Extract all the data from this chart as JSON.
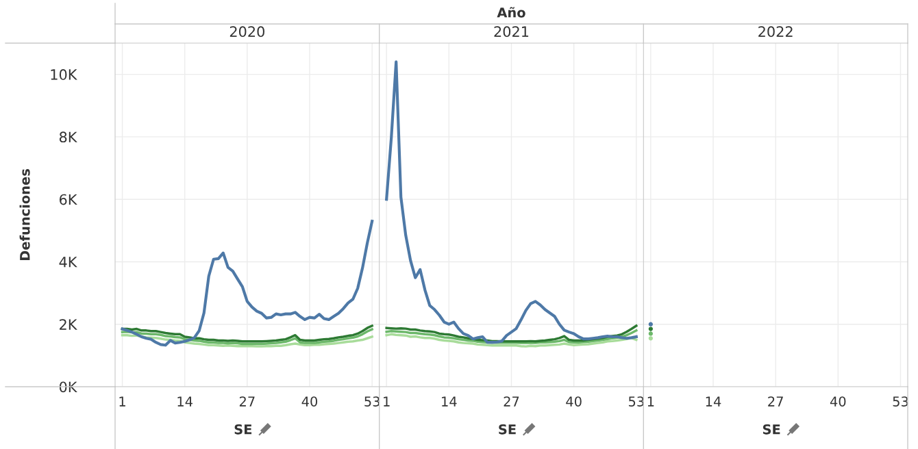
{
  "chart_data": [
    {
      "type": "line",
      "title": "2020",
      "xlabel": "SE",
      "ylabel": "Defunciones",
      "annotations": [
        "Año"
      ],
      "x": [
        1,
        2,
        3,
        4,
        5,
        6,
        7,
        8,
        9,
        10,
        11,
        12,
        13,
        14,
        15,
        16,
        17,
        18,
        19,
        20,
        21,
        22,
        23,
        24,
        25,
        26,
        27,
        28,
        29,
        30,
        31,
        32,
        33,
        34,
        35,
        36,
        37,
        38,
        39,
        40,
        41,
        42,
        43,
        44,
        45,
        46,
        47,
        48,
        49,
        50,
        51,
        52,
        53
      ],
      "xlim": [
        -0.5,
        54.5
      ],
      "xticks": [
        1,
        14,
        27,
        40,
        53
      ],
      "ylim": [
        0,
        11000
      ],
      "yticks": [
        {
          "value": 0,
          "label": "0K"
        },
        {
          "value": 2000,
          "label": "2K"
        },
        {
          "value": 4000,
          "label": "4K"
        },
        {
          "value": 6000,
          "label": "6K"
        },
        {
          "value": 8000,
          "label": "8K"
        },
        {
          "value": 10000,
          "label": "10K"
        }
      ],
      "grid": true,
      "line_style": "solid",
      "series": [
        {
          "color": "#a8dc9a",
          "values": [
            1650,
            1650,
            1630,
            1640,
            1600,
            1580,
            1570,
            1560,
            1540,
            1510,
            1500,
            1480,
            1470,
            1420,
            1400,
            1380,
            1370,
            1350,
            1330,
            1330,
            1320,
            1310,
            1320,
            1310,
            1300,
            1300,
            1300,
            1300,
            1290,
            1290,
            1300,
            1300,
            1310,
            1310,
            1330,
            1360,
            1380,
            1350,
            1330,
            1330,
            1340,
            1340,
            1360,
            1370,
            1380,
            1400,
            1420,
            1440,
            1450,
            1480,
            1500,
            1550,
            1600
          ]
        },
        {
          "color": "#6cb86a",
          "values": [
            1750,
            1760,
            1740,
            1750,
            1700,
            1700,
            1680,
            1680,
            1660,
            1620,
            1610,
            1590,
            1580,
            1520,
            1500,
            1480,
            1470,
            1440,
            1420,
            1420,
            1400,
            1400,
            1390,
            1400,
            1390,
            1370,
            1370,
            1370,
            1370,
            1370,
            1380,
            1390,
            1400,
            1420,
            1440,
            1490,
            1550,
            1420,
            1400,
            1400,
            1400,
            1420,
            1440,
            1450,
            1470,
            1500,
            1520,
            1550,
            1570,
            1610,
            1680,
            1770,
            1840
          ]
        },
        {
          "color": "#2d7a33",
          "values": [
            1850,
            1850,
            1830,
            1850,
            1800,
            1800,
            1780,
            1780,
            1750,
            1720,
            1700,
            1680,
            1680,
            1600,
            1580,
            1550,
            1550,
            1520,
            1500,
            1500,
            1480,
            1480,
            1470,
            1480,
            1470,
            1450,
            1450,
            1450,
            1450,
            1450,
            1460,
            1470,
            1480,
            1500,
            1520,
            1580,
            1650,
            1500,
            1480,
            1480,
            1480,
            1500,
            1520,
            1530,
            1550,
            1580,
            1600,
            1630,
            1650,
            1700,
            1780,
            1880,
            1950
          ]
        },
        {
          "color": "#4e79a7",
          "values": [
            1850,
            1800,
            1750,
            1680,
            1600,
            1550,
            1520,
            1420,
            1350,
            1330,
            1480,
            1400,
            1420,
            1450,
            1500,
            1570,
            1790,
            2360,
            3540,
            4080,
            4100,
            4280,
            3820,
            3700,
            3450,
            3200,
            2730,
            2550,
            2420,
            2350,
            2200,
            2220,
            2330,
            2300,
            2330,
            2330,
            2380,
            2250,
            2150,
            2220,
            2200,
            2320,
            2180,
            2150,
            2250,
            2350,
            2500,
            2680,
            2800,
            3150,
            3800,
            4600,
            5300
          ]
        }
      ]
    },
    {
      "type": "line",
      "title": "2021",
      "xlabel": "SE",
      "x": [
        1,
        2,
        3,
        4,
        5,
        6,
        7,
        8,
        9,
        10,
        11,
        12,
        13,
        14,
        15,
        16,
        17,
        18,
        19,
        20,
        21,
        22,
        23,
        24,
        25,
        26,
        27,
        28,
        29,
        30,
        31,
        32,
        33,
        34,
        35,
        36,
        37,
        38,
        39,
        40,
        41,
        42,
        43,
        44,
        45,
        46,
        47,
        48,
        49,
        50,
        51,
        52,
        53
      ],
      "xlim": [
        -0.5,
        54.5
      ],
      "xticks": [
        1,
        14,
        27,
        40,
        53
      ],
      "ylim": [
        0,
        11000
      ],
      "yticks": [
        0,
        2000,
        4000,
        6000,
        8000,
        10000
      ],
      "tick_labels": "x",
      "grid": true,
      "line_style": "solid",
      "series": [
        {
          "color": "#a8dc9a",
          "values": [
            1650,
            1680,
            1660,
            1650,
            1640,
            1600,
            1610,
            1580,
            1560,
            1560,
            1540,
            1500,
            1480,
            1470,
            1450,
            1420,
            1400,
            1390,
            1380,
            1350,
            1340,
            1330,
            1320,
            1320,
            1320,
            1320,
            1320,
            1320,
            1300,
            1290,
            1310,
            1300,
            1320,
            1320,
            1330,
            1340,
            1350,
            1380,
            1350,
            1330,
            1340,
            1350,
            1360,
            1380,
            1400,
            1420,
            1450,
            1460,
            1480,
            1500,
            1530,
            1560,
            1500
          ]
        },
        {
          "color": "#6cb86a",
          "values": [
            1760,
            1780,
            1770,
            1760,
            1750,
            1720,
            1720,
            1700,
            1680,
            1670,
            1650,
            1610,
            1580,
            1570,
            1550,
            1520,
            1500,
            1480,
            1470,
            1440,
            1430,
            1420,
            1410,
            1410,
            1410,
            1410,
            1410,
            1410,
            1400,
            1400,
            1410,
            1400,
            1420,
            1420,
            1430,
            1440,
            1460,
            1500,
            1430,
            1420,
            1420,
            1430,
            1440,
            1460,
            1480,
            1500,
            1530,
            1550,
            1570,
            1600,
            1650,
            1720,
            1800
          ]
        },
        {
          "color": "#2d7a33",
          "values": [
            1880,
            1870,
            1860,
            1870,
            1860,
            1830,
            1830,
            1800,
            1780,
            1770,
            1750,
            1700,
            1680,
            1670,
            1640,
            1600,
            1580,
            1550,
            1530,
            1500,
            1490,
            1480,
            1460,
            1460,
            1450,
            1450,
            1450,
            1450,
            1450,
            1450,
            1460,
            1450,
            1470,
            1480,
            1500,
            1520,
            1560,
            1620,
            1500,
            1480,
            1480,
            1480,
            1500,
            1520,
            1540,
            1560,
            1600,
            1620,
            1640,
            1680,
            1760,
            1850,
            1950
          ]
        },
        {
          "color": "#4e79a7",
          "values": [
            6000,
            7970,
            10400,
            6070,
            4850,
            4040,
            3490,
            3750,
            3100,
            2600,
            2470,
            2290,
            2070,
            2000,
            2070,
            1860,
            1700,
            1640,
            1530,
            1570,
            1600,
            1420,
            1420,
            1430,
            1460,
            1640,
            1750,
            1860,
            2140,
            2440,
            2660,
            2730,
            2620,
            2470,
            2360,
            2250,
            2000,
            1810,
            1750,
            1700,
            1600,
            1530,
            1530,
            1550,
            1570,
            1600,
            1620,
            1600,
            1600,
            1570,
            1550,
            1570,
            1600
          ]
        }
      ]
    },
    {
      "type": "line",
      "title": "2022",
      "xlabel": "SE",
      "x": [
        1
      ],
      "xlim": [
        -0.5,
        54.5
      ],
      "xticks": [
        1,
        14,
        27,
        40,
        53
      ],
      "ylim": [
        0,
        11000
      ],
      "yticks": [
        0,
        2000,
        4000,
        6000,
        8000,
        10000
      ],
      "tick_labels": "x",
      "grid": true,
      "marker": "circle",
      "series": [
        {
          "color": "#a8dc9a",
          "values": [
            1550
          ]
        },
        {
          "color": "#6cb86a",
          "values": [
            1700
          ]
        },
        {
          "color": "#2d7a33",
          "values": [
            1850
          ]
        },
        {
          "color": "#4e79a7",
          "values": [
            2000
          ]
        }
      ]
    }
  ]
}
